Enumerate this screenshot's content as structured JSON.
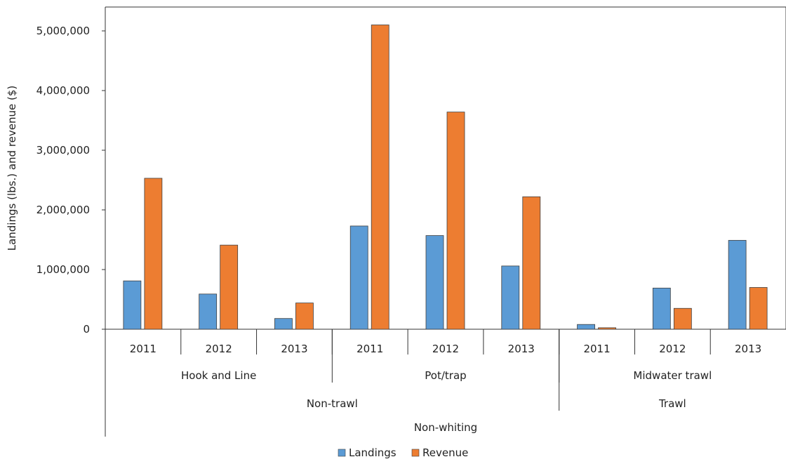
{
  "chart_data": {
    "type": "bar",
    "ylabel": "Landings (lbs.) and revenue ($)",
    "ylim": [
      0,
      5400000
    ],
    "yticks": [
      0,
      1000000,
      2000000,
      3000000,
      4000000,
      5000000
    ],
    "ytick_labels": [
      "0",
      "1,000,000",
      "2,000,000",
      "3,000,000",
      "4,000,000",
      "5,000,000"
    ],
    "categories": [
      "2011",
      "2012",
      "2013",
      "2011",
      "2012",
      "2013",
      "2011",
      "2012",
      "2013"
    ],
    "group_levels": [
      [
        {
          "label": "Hook and Line",
          "span": 3
        },
        {
          "label": "Pot/trap",
          "span": 3
        },
        {
          "label": "Midwater trawl",
          "span": 3
        }
      ],
      [
        {
          "label": "Non-trawl",
          "span": 6
        },
        {
          "label": "Trawl",
          "span": 3
        }
      ],
      [
        {
          "label": "Non-whiting",
          "span": 9
        }
      ]
    ],
    "series": [
      {
        "name": "Landings",
        "color": "#5b9bd5",
        "values": [
          810000,
          590000,
          180000,
          1730000,
          1570000,
          1060000,
          80000,
          690000,
          1490000
        ]
      },
      {
        "name": "Revenue",
        "color": "#ed7d31",
        "values": [
          2530000,
          1410000,
          440000,
          5100000,
          3640000,
          2220000,
          25000,
          350000,
          700000
        ]
      }
    ],
    "legend_position": "bottom",
    "grid": false
  }
}
